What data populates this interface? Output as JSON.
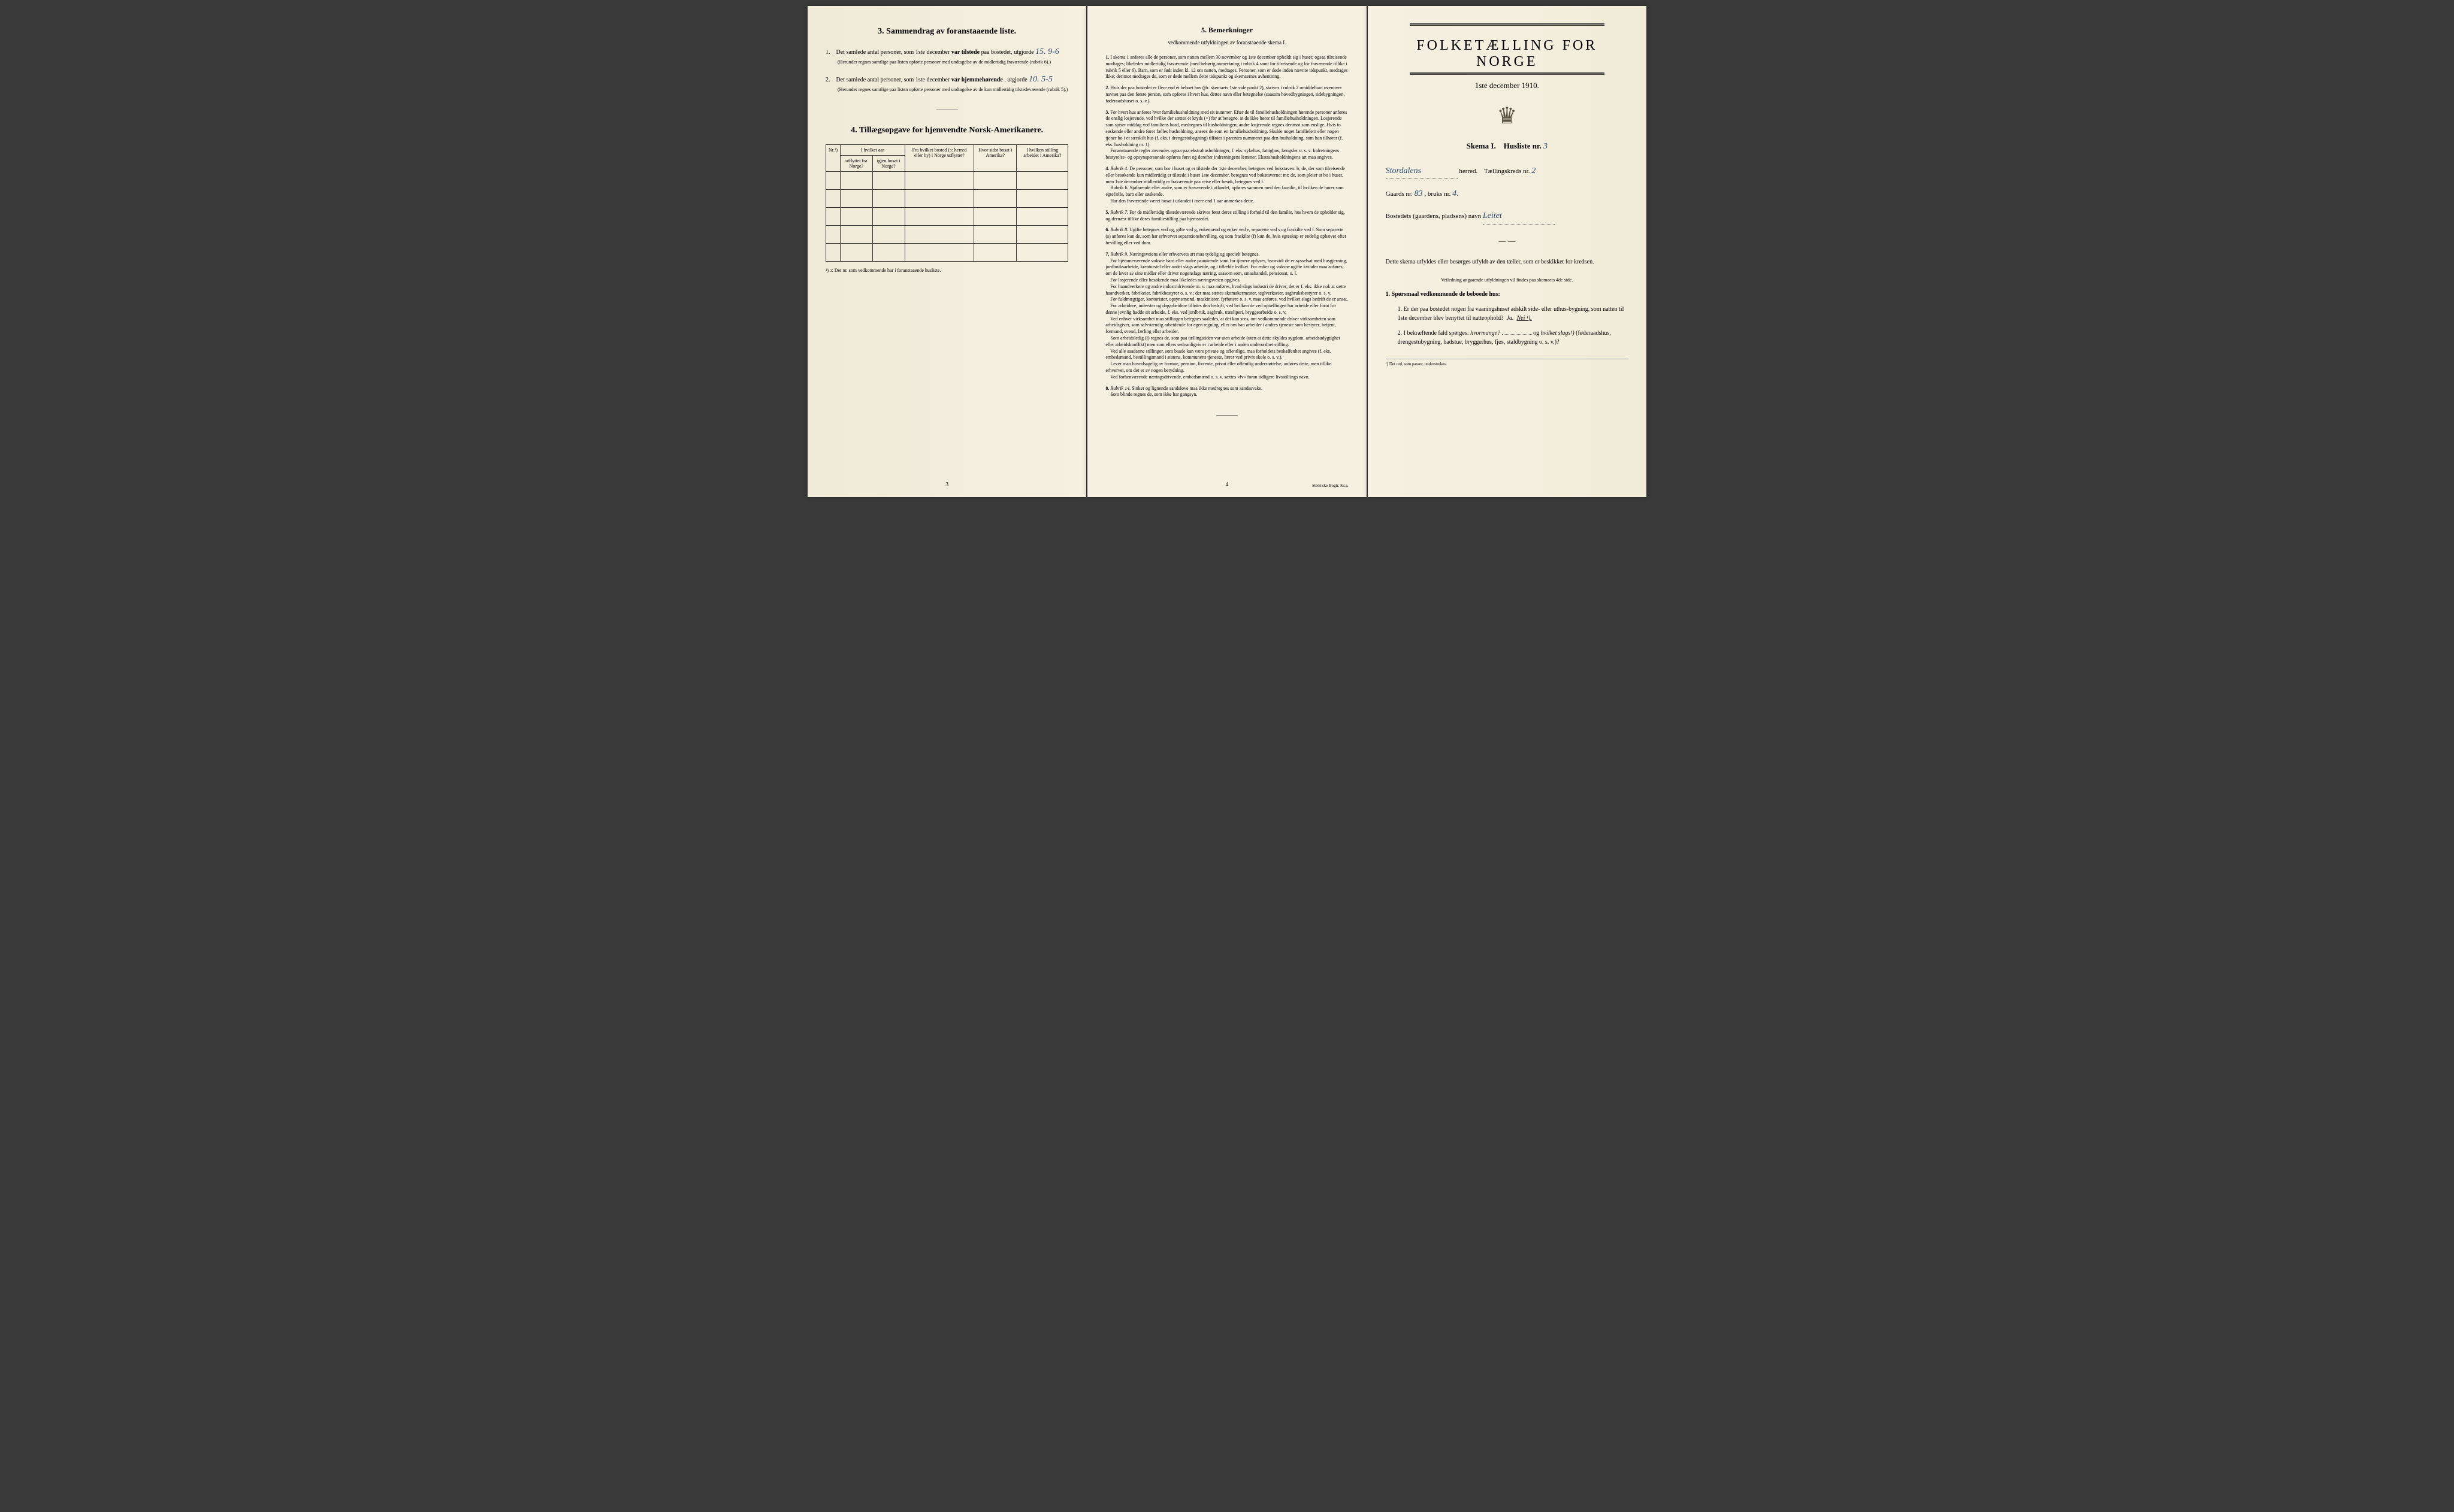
{
  "page_left": {
    "section3": {
      "title": "3.  Sammendrag av foranstaaende liste.",
      "item1": {
        "num": "1.",
        "text_before": "Det samlede antal personer, som 1ste december",
        "text_bold": "var tilstede",
        "text_after": "paa bostedet, utgjorde",
        "handwritten": "15.   9-6",
        "note": "(Herunder regnes samtlige paa listen opførte personer med undtagelse av de midlertidig fraværende (rubrik 6).)"
      },
      "item2": {
        "num": "2.",
        "text_before": "Det samlede antal personer, som 1ste december",
        "text_bold": "var hjemmehørende",
        "text_after": ", utgjorde",
        "handwritten": "10.   5-5",
        "note": "(Herunder regnes samtlige paa listen opførte personer med undtagelse av de kun midlertidig tilstedeværende (rubrik 5).)"
      }
    },
    "section4": {
      "title": "4.  Tillægsopgave for hjemvendte Norsk-Amerikanere.",
      "headers": {
        "col1_top": "Nr.¹)",
        "col2_top": "I hvilket aar",
        "col2_sub1": "utflyttet fra Norge?",
        "col2_sub2": "igjen bosat i Norge?",
        "col3": "Fra hvilket bosted (ɔ: herred eller by) i Norge utflyttet?",
        "col4": "Hvor sidst bosat i Amerika?",
        "col5": "I hvilken stilling arbeidet i Amerika?"
      },
      "footnote": "¹) ɔ: Det nr. som vedkommende har i foranstaaende husliste."
    },
    "page_num": "3"
  },
  "page_middle": {
    "title": "5.  Bemerkninger",
    "subtitle": "vedkommende utfyldningen av foranstaaende skema I.",
    "remarks": [
      {
        "num": "1.",
        "text": "I skema 1 anføres alle de personer, som natten mellem 30 november og 1ste december opholdt sig i huset; ogsaa tilreisende medtages; likeledes midlertidig fraværende (med behørig anmerkning i rubrik 4 samt for tilreisende og for fraværende tillike i rubrik 5 eller 6). Barn, som er født inden kl. 12 om natten, medtages. Personer, som er døde inden nævnte tidspunkt, medtages ikke; derimot medtages de, som er døde mellem dette tidspunkt og skemaernes avhentning."
      },
      {
        "num": "2.",
        "text": "Hvis der paa bostedet er flere end ét beboet hus (jfr. skemaets 1ste side punkt 2), skrives i rubrik 2 umiddelbart ovenover navnet paa den første person, som opføres i hvert hus, dettes navn eller betegnelse (saasom hovedbygningen, sidebygningen, føderaadshuset o. s. v.)."
      },
      {
        "num": "3.",
        "text": "For hvert hus anføres hver familiehusholdning med sit nummer. Efter de til familiehusholdningen hørende personer anføres de enslig losjerende, ved hvilke der sættes et kryds (×) for at betegne, at de ikke hører til familiehusholdningen. Losjerende som spiser middag ved familiens bord, medregnes til husholdningen; andre losjerende regnes derimot som enslige. Hvis to søskende eller andre fører fælles husholdning, ansees de som en familiehusholdning. Skulde noget familielem eller nogen tjener bo i et særskilt hus (f. eks. i drengestubygning) tilføies i parentes nummeret paa den husholdning, som han tilhører (f. eks. husholdning nr. 1).\n   Foranstaaende regler anvendes ogsaa paa ekstrahusholdninger, f. eks. sykehus, fattighus, fængsler o. s. v. Indretningens bestyrelse- og opsynspersonale opføres først og derefter indretningens lemmer. Ekstrahusholdningens art maa angives."
      },
      {
        "num": "4.",
        "label": "Rubrik 4.",
        "text": "De personer, som bor i huset og er tilstede der 1ste december, betegnes ved bokstaven: b; de, der som tilreisende eller besøkende kun midlertidig er tilstede i huset 1ste december, betegnes ved bokstaverne: mt; de, som pleier at bo i huset, men 1ste december midlertidig er fraværende paa reise eller besøk, betegnes ved f.\n   Rubrik 6. Sjøfarende eller andre, som er fraværende i utlandet, opføres sammen med den familie, til hvilken de hører som egtefælle, barn eller søskende.\n   Har den fraværende været bosat i utlandet i mere end 1 aar anmerkes dette."
      },
      {
        "num": "5.",
        "label": "Rubrik 7.",
        "text": "For de midlertidig tilstedeværende skrives først deres stilling i forhold til den familie, hos hvem de opholder sig, og dernæst tillike deres familiestilling paa hjemstedet."
      },
      {
        "num": "6.",
        "label": "Rubrik 8.",
        "text": "Ugifte betegnes ved ug, gifte ved g, enkemænd og enker ved e, separerte ved s og fraskilte ved f. Som separerte (s) anføres kun de, som har erhvervet separationsbevilling, og som fraskilte (f) kun de, hvis egteskap er endelig ophævet efter bevilling eller ved dom."
      },
      {
        "num": "7.",
        "label": "Rubrik 9.",
        "text": "Næringsveiens eller erhvervets art maa tydelig og specielt betegnes.\n   For hjemmeværende voksne barn eller andre paarørende samt for tjenere oplyses, hvorvidt de er sysselsat med husgjerning, jordbruksarbeide, kreaturstel eller andet slags arbeide, og i tilfælde hvilket. For enker og voksne ugifte kvinder maa anføres, om de lever av sine midler eller driver nogenslags næring, saasom søm, smaahandel, pensionat, o. l.\n   For losjerende eller besøkende maa likeledes næringsveien opgives.\n   For haandverkere og andre industridrivende m. v. maa anføres, hvad slags industri de driver; det er f. eks. ikke nok at sætte haandverker, fabrikeier, fabrikbestyrer o. s. v.; der maa sættes skomakermester, teglverkseier, sagbruksbestyrer o. s. v.\n   For fuldmægtiger, kontorister, opsynsmænd, maskinister, fyrbøtere o. s. v. maa anføres, ved hvilket slags bedrift de er ansat.\n   For arbeidere, inderster og dagarbeidere tilføies den bedrift, ved hvilken de ved optællingen har arbeide eller forut for denne jevnlig hadde sit arbeide, f. eks. ved jordbruk, sagbruk, træsliperi, bryggearbeide o. s. v.\n   Ved enhver virksomhet maa stillingen betegnes saaledes, at det kan sees, om vedkommende driver virksomheten som arbeidsgiver, som selvstændig arbeidende for egen regning, eller om han arbeider i andres tjeneste som bestyrer, betjent, formand, svend, lærling eller arbeider.\n   Som arbeidsledig (l) regnes de, som paa tællingstiden var uten arbeide (uten at dette skyldes sygdom, arbeidsudygtighet eller arbeidskonflikt) men som ellers sedvanligvis er i arbeide eller i anden underordnet stilling.\n   Ved alle saadanne stillinger, som baade kan være private og offentlige, maa forholdets beskaffenhet angives (f. eks. embedsmand, bestillingsmand i statens, kommunens tjeneste, lærer ved privat skole o. s. v.).\n   Lever man hovedsagelig av formue, pension, livrente, privat eller offentlig understøttelse, anføres dette, men tillike erhvervet, om det er av nogen betydning.\n   Ved forhenværende næringsdrivende, embedsmænd o. s. v. sættes «fv» foran tidligere livsstillings navn."
      },
      {
        "num": "8.",
        "label": "Rubrik 14.",
        "text": "Sinker og lignende aandsløve maa ikke medregnes som aandssvake.\n   Som blinde regnes de, som ikke har gangsyn."
      }
    ],
    "page_num": "4",
    "printer": "Steen'ske Bogtr. Kr.a."
  },
  "page_right": {
    "title": "FOLKETÆLLING FOR NORGE",
    "date": "1ste december 1910.",
    "skema": {
      "label_left": "Skema I.",
      "label_right": "Husliste nr.",
      "husliste_nr": "3"
    },
    "line1": {
      "handwritten": "Stordalens",
      "suffix": "herred.",
      "label2": "Tællingskreds nr.",
      "val2": "2"
    },
    "line2": {
      "label1": "Gaards nr.",
      "val1": "83",
      "label2": ", bruks nr.",
      "val2": "4."
    },
    "line3": {
      "label": "Bostedets (gaardens, pladsens) navn",
      "handwritten": "Leitet"
    },
    "instruction": "Dette skema utfyldes eller besørges utfyldt av den tæller, som er beskikket for kredsen.",
    "veil": "Veiledning angaaende utfyldningen vil findes paa skemaets 4de side.",
    "q_heading": "1.  Spørsmaal vedkommende de beboede hus:",
    "q1": {
      "num": "1.",
      "text": "Er der paa bostedet nogen fra vaaningshuset adskilt side- eller uthus-bygning, som natten til 1ste december blev benyttet til natteophold?",
      "answer_a": "Ja.",
      "answer_b": "Nei ¹)."
    },
    "q2": {
      "num": "2.",
      "text_before": "I bekræftende fald spørges:",
      "text_italic1": "hvormange?",
      "text_mid": "og",
      "text_italic2": "hvilket slags¹)",
      "text_after": "(føderaadshus, drengestubygning, badstue, bryggerhus, fjøs, staldbygning o. s. v.)?"
    },
    "footnote": "¹) Det ord, som passer, understrekes."
  }
}
